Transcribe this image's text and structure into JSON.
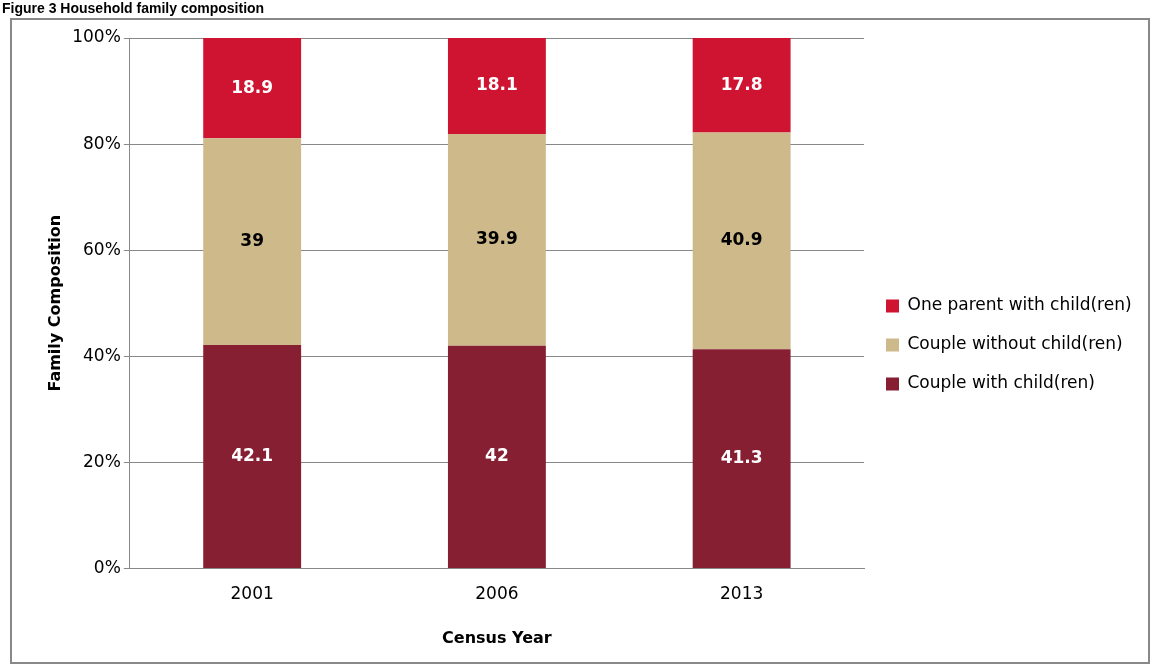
{
  "chart_data": {
    "type": "bar",
    "title": "Figure 3 Household family composition",
    "xlabel": "Census Year",
    "ylabel": "Family Composition",
    "categories": [
      "2001",
      "2006",
      "2013"
    ],
    "stacked": true,
    "series": [
      {
        "name": "Couple with child(ren)",
        "color": "#861f32",
        "values": [
          42.1,
          42,
          41.3
        ]
      },
      {
        "name": "Couple without child(ren)",
        "color": "#cdb98a",
        "values": [
          39,
          39.9,
          40.9
        ]
      },
      {
        "name": "One parent with child(ren)",
        "color": "#ce1431",
        "values": [
          18.9,
          18.1,
          17.8
        ]
      }
    ],
    "ylim": [
      0,
      100
    ],
    "yticks": [
      {
        "value": 0,
        "label": "0%"
      },
      {
        "value": 20,
        "label": "20%"
      },
      {
        "value": 40,
        "label": "40%"
      },
      {
        "value": 60,
        "label": "60%"
      },
      {
        "value": 80,
        "label": "80%"
      },
      {
        "value": 100,
        "label": "100%"
      }
    ],
    "grid": "y",
    "legend": "right",
    "data_labels": true
  }
}
